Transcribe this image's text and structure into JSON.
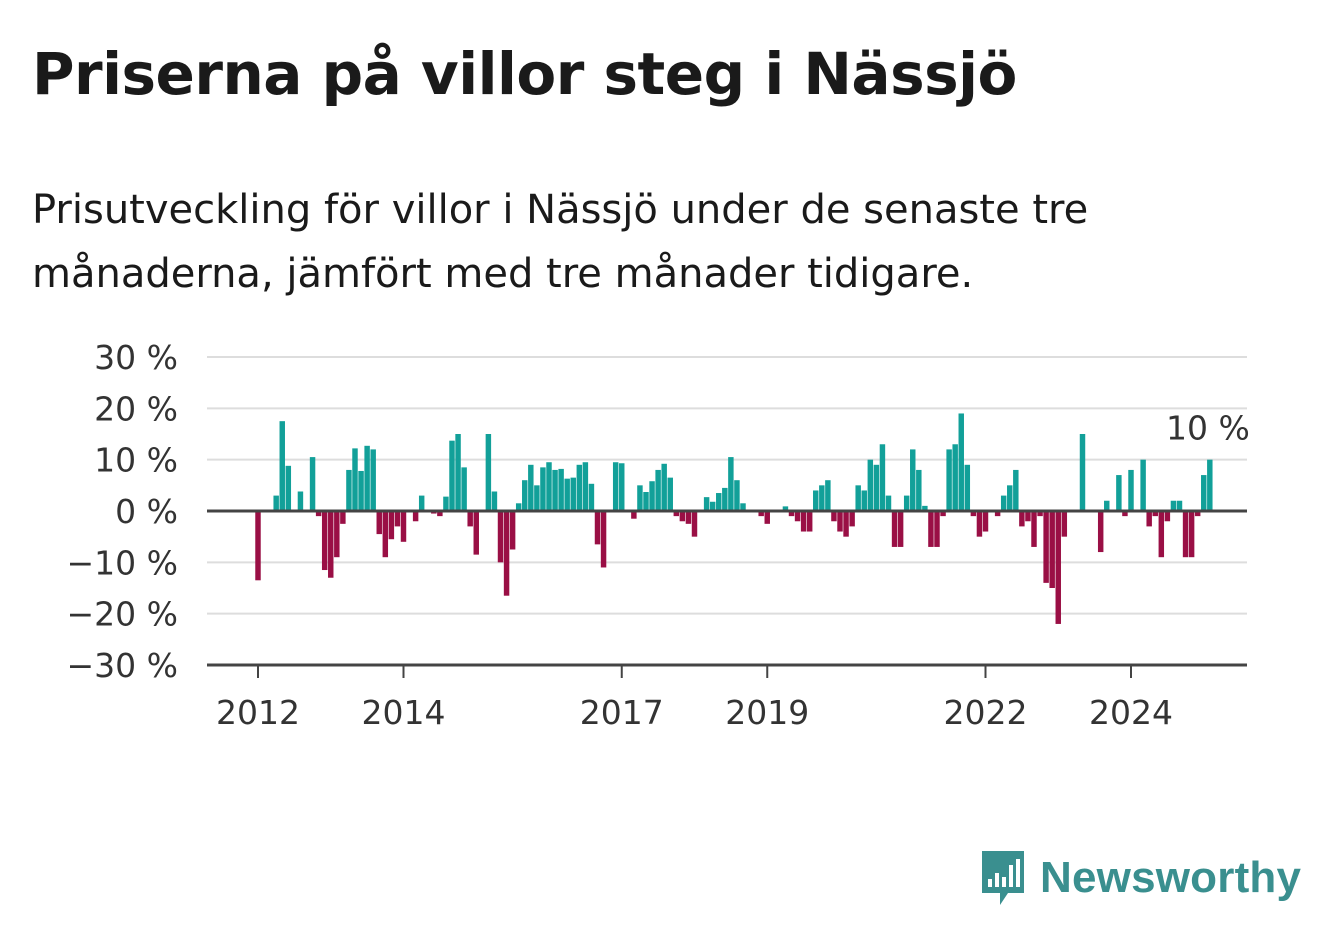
{
  "header": {
    "title": "Priserna på villor steg i Nässjö",
    "subtitle": "Prisutveckling för villor i Nässjö under de senaste tre månaderna, jämfört med tre månader tidigare."
  },
  "brand": {
    "name": "Newsworthy",
    "icon": "newsworthy-logo-icon",
    "color": "#3a8f8f"
  },
  "colors": {
    "positive": "#12a099",
    "negative": "#9a0f45",
    "grid": "#dddddd",
    "axis": "#444444"
  },
  "chart_data": {
    "type": "bar",
    "x_start": "2012-01",
    "x_unit": "month",
    "xticks": [
      "2012",
      "2014",
      "2017",
      "2019",
      "2022",
      "2024"
    ],
    "yticks": [
      30,
      20,
      10,
      0,
      -10,
      -20,
      -30
    ],
    "ytick_labels": [
      "30 %",
      "20 %",
      "10 %",
      "0 %",
      "−10 %",
      "−20 %",
      "−30 %"
    ],
    "ylim": [
      -30,
      30
    ],
    "grid": true,
    "annotation": {
      "text": "10 %",
      "target": "last"
    },
    "values": [
      -13.5,
      0,
      0,
      3,
      17.5,
      8.8,
      0,
      3.8,
      0,
      10.5,
      -1,
      -11.5,
      -13,
      -9,
      -2.5,
      8,
      12.2,
      7.8,
      12.7,
      12,
      -4.5,
      -9,
      -5.5,
      -3,
      -6,
      0,
      -2,
      3,
      0,
      -0.5,
      -1,
      2.8,
      13.7,
      15,
      8.5,
      -3,
      -8.5,
      0,
      15,
      3.8,
      -10,
      -16.5,
      -7.5,
      1.5,
      6,
      9,
      5,
      8.5,
      9.5,
      8,
      8.2,
      6.3,
      6.5,
      9,
      9.5,
      5.3,
      -6.5,
      -11,
      0,
      9.5,
      9.3,
      0,
      -1.5,
      5,
      3.7,
      5.8,
      8,
      9.2,
      6.5,
      -1,
      -2,
      -2.5,
      -5,
      0,
      2.7,
      1.8,
      3.5,
      4.5,
      10.5,
      6,
      1.5,
      0,
      0,
      -1,
      -2.5,
      0,
      0,
      0.9,
      -1,
      -2,
      -4,
      -4,
      4,
      5,
      6,
      -2,
      -4,
      -5,
      -3,
      5,
      4,
      10,
      9,
      13,
      3,
      -7,
      -7,
      3,
      12,
      8,
      1,
      -7,
      -7,
      -1,
      12,
      13,
      19,
      9,
      -1,
      -5,
      -4,
      0,
      -1,
      3,
      5,
      8,
      -3,
      -2,
      -7,
      -1,
      -14,
      -15,
      -22,
      -5,
      0,
      0,
      15,
      0,
      0,
      -8,
      2,
      0,
      7,
      -1,
      8,
      0,
      10,
      -3,
      -1,
      -9,
      -2,
      2,
      2,
      -9,
      -9,
      -1,
      7,
      10
    ]
  }
}
